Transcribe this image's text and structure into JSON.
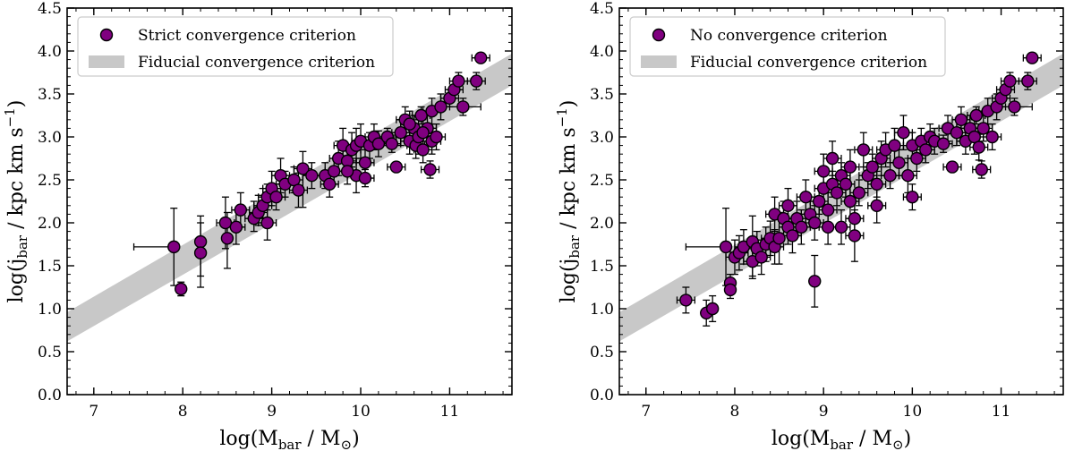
{
  "colors": {
    "marker_fill": "#800080",
    "marker_edge": "#000000",
    "band": "#c8c8c8",
    "errorbar": "#000000"
  },
  "chart_data": [
    {
      "type": "scatter",
      "panel": "left",
      "xlabel_parts": [
        "log(M",
        "bar",
        " / M",
        "⊙",
        ")"
      ],
      "ylabel_parts": [
        "log(j",
        "bar",
        " / kpc km s",
        "−1",
        ")"
      ],
      "xlim": [
        6.7,
        11.7
      ],
      "ylim": [
        0.0,
        4.5
      ],
      "xticks": [
        "7",
        "8",
        "9",
        "10",
        "11"
      ],
      "yticks": [
        "0.0",
        "0.5",
        "1.0",
        "1.5",
        "2.0",
        "2.5",
        "3.0",
        "3.5",
        "4.0",
        "4.5"
      ],
      "legend": [
        {
          "label": "Strict convergence criterion",
          "kind": "marker"
        },
        {
          "label": "Fiducial convergence criterion",
          "kind": "band"
        }
      ],
      "legend_position": "upper-left",
      "band": {
        "x": [
          6.7,
          11.7
        ],
        "lower": [
          0.62,
          3.6
        ],
        "upper": [
          0.96,
          3.97
        ]
      },
      "points": [
        [
          7.9,
          1.72,
          0.45,
          0,
          0.45,
          0.45
        ],
        [
          7.98,
          1.23,
          0.05,
          0.05,
          0.08,
          0.08
        ],
        [
          8.2,
          1.78,
          0.05,
          0.05,
          0.4,
          0.3
        ],
        [
          8.2,
          1.65,
          0.05,
          0.05,
          0.4,
          0.35
        ],
        [
          8.5,
          1.82,
          0.05,
          0.05,
          0.35,
          0.3
        ],
        [
          8.48,
          2.0,
          0.1,
          0.1,
          0.3,
          0.3
        ],
        [
          8.6,
          1.95,
          0.1,
          0.1,
          0.2,
          0.2
        ],
        [
          8.65,
          2.15,
          0.1,
          0.1,
          0.2,
          0.2
        ],
        [
          8.8,
          2.05,
          0.1,
          0.1,
          0.15,
          0.2
        ],
        [
          8.85,
          2.12,
          0.1,
          0.1,
          0.15,
          0.2
        ],
        [
          8.9,
          2.2,
          0.1,
          0.1,
          0.2,
          0.2
        ],
        [
          8.95,
          2.0,
          0.1,
          0.1,
          0.2,
          0.25
        ],
        [
          8.95,
          2.3,
          0.1,
          0.1,
          0.15,
          0.15
        ],
        [
          9.0,
          2.4,
          0.1,
          0.1,
          0.2,
          0.2
        ],
        [
          9.05,
          2.3,
          0.1,
          0.1,
          0.15,
          0.15
        ],
        [
          9.1,
          2.55,
          0.1,
          0.1,
          0.2,
          0.2
        ],
        [
          9.15,
          2.45,
          0.1,
          0.1,
          0.15,
          0.15
        ],
        [
          9.25,
          2.5,
          0.1,
          0.1,
          0.15,
          0.15
        ],
        [
          9.3,
          2.38,
          0.1,
          0.1,
          0.2,
          0.2
        ],
        [
          9.35,
          2.63,
          0.1,
          0.1,
          0.45,
          0.2
        ],
        [
          9.45,
          2.55,
          0.1,
          0.1,
          0.15,
          0.15
        ],
        [
          9.6,
          2.55,
          0.1,
          0.1,
          0.15,
          0.15
        ],
        [
          9.65,
          2.45,
          0.1,
          0.1,
          0.15,
          0.15
        ],
        [
          9.7,
          2.6,
          0.1,
          0.1,
          0.15,
          0.15
        ],
        [
          9.75,
          2.75,
          0.1,
          0.1,
          0.2,
          0.2
        ],
        [
          9.8,
          2.9,
          0.1,
          0.1,
          0.2,
          0.2
        ],
        [
          9.85,
          2.72,
          0.1,
          0.1,
          0.15,
          0.15
        ],
        [
          9.9,
          2.85,
          0.1,
          0.1,
          0.2,
          0.2
        ],
        [
          9.95,
          2.55,
          0.1,
          0.1,
          0.2,
          0.2
        ],
        [
          9.95,
          2.9,
          0.1,
          0.1,
          0.2,
          0.2
        ],
        [
          10.0,
          2.95,
          0.1,
          0.1,
          0.2,
          0.2
        ],
        [
          10.05,
          2.7,
          0.1,
          0.1,
          0.15,
          0.15
        ],
        [
          10.05,
          2.52,
          0.1,
          0.1,
          0.1,
          0.1
        ],
        [
          10.1,
          2.9,
          0.1,
          0.1,
          0.15,
          0.15
        ],
        [
          10.15,
          3.0,
          0.1,
          0.1,
          0.15,
          0.15
        ],
        [
          10.2,
          2.92,
          0.1,
          0.1,
          0.15,
          0.15
        ],
        [
          10.3,
          3.0,
          0.1,
          0.1,
          0.1,
          0.1
        ],
        [
          10.35,
          2.92,
          0.1,
          0.1,
          0.1,
          0.1
        ],
        [
          10.4,
          2.65,
          0.1,
          0.1,
          0.05,
          0.05
        ],
        [
          10.45,
          3.05,
          0.1,
          0.1,
          0.15,
          0.15
        ],
        [
          10.5,
          3.2,
          0.1,
          0.1,
          0.15,
          0.15
        ],
        [
          10.55,
          2.95,
          0.1,
          0.1,
          0.15,
          0.15
        ],
        [
          10.6,
          3.1,
          0.1,
          0.1,
          0.15,
          0.15
        ],
        [
          10.62,
          2.9,
          0.1,
          0.1,
          0.15,
          0.15
        ],
        [
          10.65,
          3.0,
          0.1,
          0.1,
          0.2,
          0.2
        ],
        [
          10.68,
          3.25,
          0.1,
          0.1,
          0.1,
          0.1
        ],
        [
          10.7,
          2.85,
          0.1,
          0.1,
          0.15,
          0.15
        ],
        [
          10.75,
          3.1,
          0.1,
          0.1,
          0.15,
          0.15
        ],
        [
          10.8,
          2.95,
          0.1,
          0.1,
          0.15,
          0.15
        ],
        [
          10.8,
          3.3,
          0.1,
          0.1,
          0.15,
          0.15
        ],
        [
          10.78,
          2.62,
          0.1,
          0.1,
          0.1,
          0.1
        ],
        [
          10.85,
          3.0,
          0.1,
          0.1,
          0.15,
          0.15
        ],
        [
          10.9,
          3.35,
          0.1,
          0.1,
          0.15,
          0.15
        ],
        [
          11.0,
          3.45,
          0.1,
          0.1,
          0.1,
          0.1
        ],
        [
          11.05,
          3.55,
          0.1,
          0.1,
          0.1,
          0.1
        ],
        [
          11.1,
          3.65,
          0.1,
          0.1,
          0.1,
          0.1
        ],
        [
          11.15,
          3.35,
          0.2,
          0.2,
          0.1,
          0.1
        ],
        [
          11.3,
          3.65,
          0.1,
          0.1,
          0.1,
          0.1
        ],
        [
          11.35,
          3.92,
          0.1,
          0.1,
          0.05,
          0.05
        ],
        [
          10.55,
          3.15,
          0.1,
          0.1,
          0.15,
          0.15
        ],
        [
          10.7,
          3.05,
          0.1,
          0.1,
          0.15,
          0.15
        ],
        [
          9.85,
          2.6,
          0.1,
          0.1,
          0.15,
          0.15
        ]
      ]
    },
    {
      "type": "scatter",
      "panel": "right",
      "xlabel_parts": [
        "log(M",
        "bar",
        " / M",
        "⊙",
        ")"
      ],
      "ylabel_parts": [
        "log(j",
        "bar",
        " / kpc km s",
        "−1",
        ")"
      ],
      "xlim": [
        6.7,
        11.7
      ],
      "ylim": [
        0.0,
        4.5
      ],
      "xticks": [
        "7",
        "8",
        "9",
        "10",
        "11"
      ],
      "yticks": [
        "0.0",
        "0.5",
        "1.0",
        "1.5",
        "2.0",
        "2.5",
        "3.0",
        "3.5",
        "4.0",
        "4.5"
      ],
      "legend": [
        {
          "label": "No convergence criterion",
          "kind": "marker"
        },
        {
          "label": "Fiducial convergence criterion",
          "kind": "band"
        }
      ],
      "legend_position": "upper-left",
      "band": {
        "x": [
          6.7,
          11.7
        ],
        "lower": [
          0.62,
          3.6
        ],
        "upper": [
          0.96,
          3.97
        ]
      },
      "points": [
        [
          7.45,
          1.1,
          0.1,
          0.1,
          0.15,
          0.15
        ],
        [
          7.68,
          0.95,
          0.05,
          0.05,
          0.15,
          0.15
        ],
        [
          7.75,
          1.0,
          0.05,
          0.05,
          0.15,
          0.15
        ],
        [
          7.95,
          1.3,
          0.05,
          0.05,
          0.1,
          0.1
        ],
        [
          7.95,
          1.22,
          0.05,
          0.05,
          0.1,
          0.1
        ],
        [
          7.9,
          1.72,
          0.45,
          0,
          0.45,
          0.45
        ],
        [
          8.0,
          1.6,
          0.1,
          0.1,
          0.2,
          0.2
        ],
        [
          8.05,
          1.65,
          0.1,
          0.1,
          0.2,
          0.2
        ],
        [
          8.1,
          1.72,
          0.1,
          0.1,
          0.2,
          0.2
        ],
        [
          8.2,
          1.78,
          0.05,
          0.05,
          0.4,
          0.3
        ],
        [
          8.2,
          1.55,
          0.1,
          0.1,
          0.2,
          0.2
        ],
        [
          8.25,
          1.7,
          0.1,
          0.1,
          0.2,
          0.2
        ],
        [
          8.3,
          1.6,
          0.1,
          0.1,
          0.2,
          0.2
        ],
        [
          8.35,
          1.75,
          0.1,
          0.1,
          0.2,
          0.2
        ],
        [
          8.4,
          1.82,
          0.1,
          0.1,
          0.2,
          0.2
        ],
        [
          8.45,
          1.72,
          0.1,
          0.1,
          0.2,
          0.2
        ],
        [
          8.45,
          2.1,
          0.1,
          0.1,
          0.2,
          0.2
        ],
        [
          8.5,
          1.82,
          0.05,
          0.05,
          0.3,
          0.3
        ],
        [
          8.55,
          2.05,
          0.1,
          0.1,
          0.2,
          0.2
        ],
        [
          8.6,
          1.95,
          0.1,
          0.1,
          0.2,
          0.2
        ],
        [
          8.6,
          2.2,
          0.1,
          0.1,
          0.2,
          0.2
        ],
        [
          8.65,
          1.85,
          0.1,
          0.1,
          0.2,
          0.2
        ],
        [
          8.7,
          2.05,
          0.1,
          0.1,
          0.2,
          0.2
        ],
        [
          8.75,
          1.95,
          0.1,
          0.1,
          0.2,
          0.2
        ],
        [
          8.8,
          2.3,
          0.1,
          0.1,
          0.2,
          0.2
        ],
        [
          8.85,
          2.1,
          0.1,
          0.1,
          0.15,
          0.15
        ],
        [
          8.9,
          1.32,
          0.05,
          0.05,
          0.3,
          0.3
        ],
        [
          8.9,
          2.0,
          0.1,
          0.1,
          0.2,
          0.2
        ],
        [
          8.95,
          2.25,
          0.1,
          0.1,
          0.15,
          0.15
        ],
        [
          9.0,
          2.4,
          0.1,
          0.1,
          0.2,
          0.2
        ],
        [
          9.0,
          2.6,
          0.1,
          0.1,
          0.2,
          0.2
        ],
        [
          9.05,
          2.15,
          0.1,
          0.1,
          0.2,
          0.2
        ],
        [
          9.05,
          1.95,
          0.1,
          0.1,
          0.2,
          0.2
        ],
        [
          9.1,
          2.45,
          0.1,
          0.1,
          0.15,
          0.15
        ],
        [
          9.1,
          2.75,
          0.1,
          0.1,
          0.2,
          0.2
        ],
        [
          9.15,
          2.35,
          0.1,
          0.1,
          0.15,
          0.15
        ],
        [
          9.2,
          2.55,
          0.1,
          0.1,
          0.15,
          0.15
        ],
        [
          9.2,
          1.95,
          0.1,
          0.1,
          0.2,
          0.2
        ],
        [
          9.25,
          2.45,
          0.1,
          0.1,
          0.15,
          0.15
        ],
        [
          9.3,
          2.65,
          0.1,
          0.1,
          0.2,
          0.2
        ],
        [
          9.35,
          2.05,
          0.1,
          0.1,
          0.2,
          0.2
        ],
        [
          9.35,
          1.85,
          0.1,
          0.1,
          0.3,
          0.3
        ],
        [
          9.4,
          2.35,
          0.1,
          0.1,
          0.15,
          0.15
        ],
        [
          9.45,
          2.85,
          0.1,
          0.1,
          0.2,
          0.2
        ],
        [
          9.5,
          2.55,
          0.1,
          0.1,
          0.15,
          0.15
        ],
        [
          9.55,
          2.65,
          0.1,
          0.1,
          0.15,
          0.15
        ],
        [
          9.6,
          2.45,
          0.1,
          0.1,
          0.15,
          0.15
        ],
        [
          9.65,
          2.75,
          0.1,
          0.1,
          0.2,
          0.2
        ],
        [
          9.7,
          2.85,
          0.1,
          0.1,
          0.2,
          0.2
        ],
        [
          9.75,
          2.55,
          0.1,
          0.1,
          0.15,
          0.15
        ],
        [
          9.8,
          2.9,
          0.1,
          0.1,
          0.2,
          0.2
        ],
        [
          9.85,
          2.7,
          0.1,
          0.1,
          0.15,
          0.15
        ],
        [
          9.9,
          3.05,
          0.1,
          0.1,
          0.2,
          0.2
        ],
        [
          9.95,
          2.55,
          0.1,
          0.1,
          0.2,
          0.2
        ],
        [
          10.0,
          2.3,
          0.1,
          0.1,
          0.15,
          0.15
        ],
        [
          10.0,
          2.9,
          0.1,
          0.1,
          0.15,
          0.15
        ],
        [
          10.05,
          2.75,
          0.1,
          0.1,
          0.15,
          0.15
        ],
        [
          10.1,
          2.95,
          0.1,
          0.1,
          0.15,
          0.15
        ],
        [
          10.15,
          2.85,
          0.1,
          0.1,
          0.15,
          0.15
        ],
        [
          10.2,
          3.0,
          0.1,
          0.1,
          0.15,
          0.15
        ],
        [
          10.25,
          2.95,
          0.1,
          0.1,
          0.15,
          0.15
        ],
        [
          10.35,
          2.92,
          0.1,
          0.1,
          0.1,
          0.1
        ],
        [
          10.4,
          3.1,
          0.1,
          0.1,
          0.15,
          0.15
        ],
        [
          10.45,
          2.65,
          0.1,
          0.1,
          0.05,
          0.05
        ],
        [
          10.5,
          3.05,
          0.1,
          0.1,
          0.15,
          0.15
        ],
        [
          10.55,
          3.2,
          0.1,
          0.1,
          0.15,
          0.15
        ],
        [
          10.6,
          2.95,
          0.1,
          0.1,
          0.15,
          0.15
        ],
        [
          10.65,
          3.1,
          0.1,
          0.1,
          0.15,
          0.15
        ],
        [
          10.7,
          3.0,
          0.1,
          0.1,
          0.2,
          0.2
        ],
        [
          10.72,
          3.25,
          0.1,
          0.1,
          0.1,
          0.1
        ],
        [
          10.75,
          2.88,
          0.1,
          0.1,
          0.15,
          0.15
        ],
        [
          10.78,
          2.62,
          0.1,
          0.1,
          0.1,
          0.1
        ],
        [
          10.8,
          3.1,
          0.1,
          0.1,
          0.15,
          0.15
        ],
        [
          10.85,
          3.3,
          0.1,
          0.1,
          0.15,
          0.15
        ],
        [
          10.9,
          3.0,
          0.1,
          0.1,
          0.15,
          0.15
        ],
        [
          10.95,
          3.35,
          0.1,
          0.1,
          0.15,
          0.15
        ],
        [
          11.0,
          3.45,
          0.1,
          0.1,
          0.1,
          0.1
        ],
        [
          11.05,
          3.55,
          0.1,
          0.1,
          0.1,
          0.1
        ],
        [
          11.1,
          3.65,
          0.1,
          0.1,
          0.1,
          0.1
        ],
        [
          11.15,
          3.35,
          0.2,
          0.2,
          0.1,
          0.1
        ],
        [
          11.3,
          3.65,
          0.1,
          0.1,
          0.1,
          0.1
        ],
        [
          11.35,
          3.92,
          0.1,
          0.1,
          0.05,
          0.05
        ],
        [
          9.6,
          2.2,
          0.1,
          0.1,
          0.2,
          0.2
        ],
        [
          9.3,
          2.25,
          0.1,
          0.1,
          0.2,
          0.2
        ]
      ]
    }
  ]
}
